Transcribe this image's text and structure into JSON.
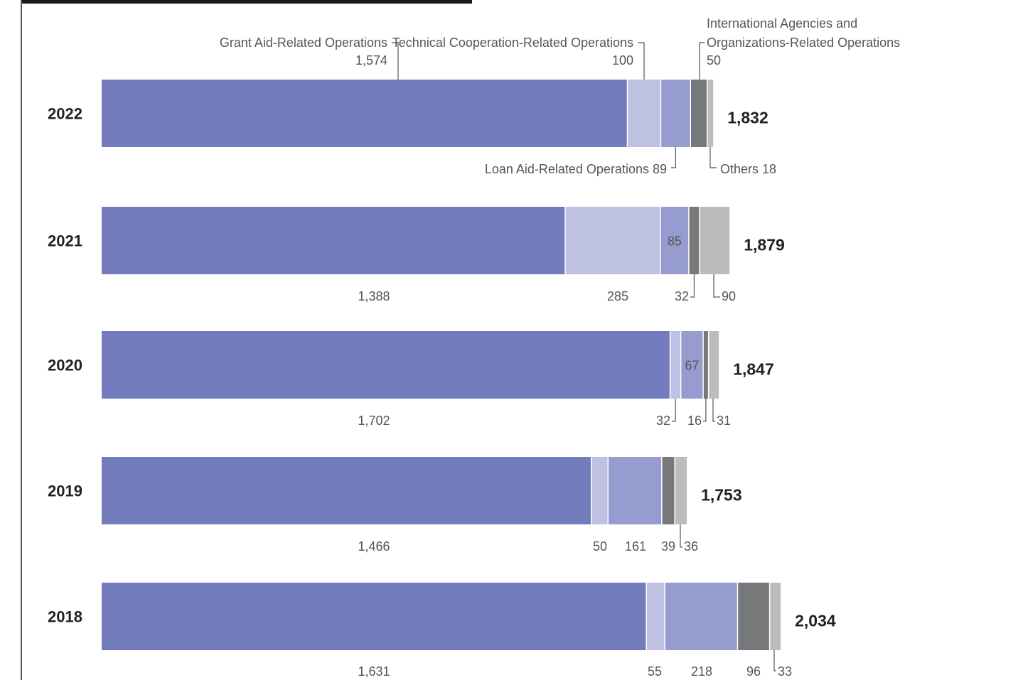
{
  "chart_data": {
    "type": "bar",
    "orientation": "horizontal",
    "stacked": true,
    "categories": [
      "2022",
      "2021",
      "2020",
      "2019",
      "2018"
    ],
    "totals": [
      "1,832",
      "1,879",
      "1,847",
      "1,753",
      "2,034"
    ],
    "series": [
      {
        "name": "Grant Aid-Related Operations",
        "values": [
          1574,
          1388,
          1702,
          1466,
          1631
        ],
        "color": "#737dbd"
      },
      {
        "name": "Technical Cooperation-Related Operations",
        "values": [
          100,
          285,
          32,
          50,
          55
        ],
        "color": "#bec1e2"
      },
      {
        "name": "Loan Aid-Related Operations",
        "values": [
          89,
          85,
          67,
          161,
          218
        ],
        "color": "#969ccf"
      },
      {
        "name": "International Agencies and Organizations-Related Operations",
        "values": [
          50,
          32,
          16,
          39,
          96
        ],
        "color": "#77787a"
      },
      {
        "name": "Others",
        "values": [
          18,
          90,
          31,
          36,
          33
        ],
        "color": "#bbbcbe"
      }
    ],
    "value_labels": [
      [
        "1,574",
        "100",
        "89",
        "50",
        "18"
      ],
      [
        "1,388",
        "285",
        "85",
        "32",
        "90"
      ],
      [
        "1,702",
        "32",
        "67",
        "16",
        "31"
      ],
      [
        "1,466",
        "50",
        "161",
        "39",
        "36"
      ],
      [
        "1,631",
        "55",
        "218",
        "96",
        "33"
      ]
    ],
    "legend_text": {
      "grant": "Grant Aid-Related Operations",
      "technical": "Technical Cooperation-Related Operations",
      "international_line1": "International Agencies and",
      "international_line2": "Organizations-Related Operations",
      "loan": "Loan Aid-Related Operations 89",
      "others": "Others 18"
    },
    "xlim": [
      0,
      2034
    ]
  }
}
